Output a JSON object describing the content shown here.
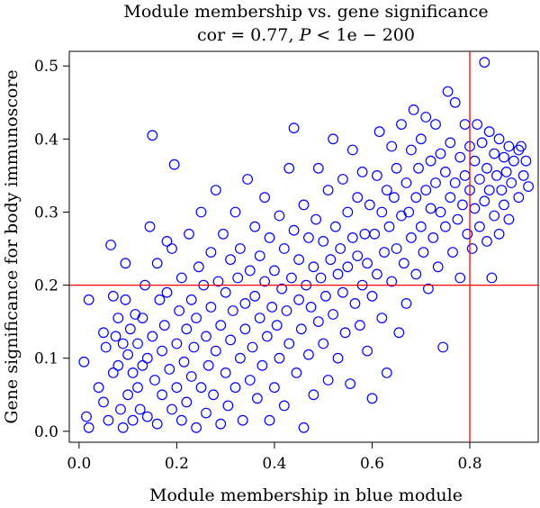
{
  "chart_data": {
    "type": "scatter",
    "title": "Module membership vs. gene significance",
    "subtitle_prefix": "cor = 0.77, ",
    "subtitle_p": "P",
    "subtitle_suffix": " < 1e − 200",
    "xlabel": "Module membership in blue module",
    "ylabel": "Gene significance for body immunoscore",
    "xlim": [
      -0.02,
      0.94
    ],
    "ylim": [
      -0.015,
      0.52
    ],
    "xticks": [
      0.0,
      0.2,
      0.4,
      0.6,
      0.8
    ],
    "yticks": [
      0.0,
      0.1,
      0.2,
      0.3,
      0.4,
      0.5
    ],
    "xtick_labels": [
      "0.0",
      "0.2",
      "0.4",
      "0.6",
      "0.8"
    ],
    "ytick_labels": [
      "0.0",
      "0.1",
      "0.2",
      "0.3",
      "0.4",
      "0.5"
    ],
    "reference_lines": {
      "x": 0.8,
      "y": 0.2,
      "color": "#ff0000"
    },
    "marker": "open-circle",
    "point_color": "#0000ff",
    "grid": false,
    "points": [
      [
        0.02,
        0.18
      ],
      [
        0.01,
        0.095
      ],
      [
        0.015,
        0.02
      ],
      [
        0.02,
        0.005
      ],
      [
        0.04,
        0.06
      ],
      [
        0.05,
        0.04
      ],
      [
        0.05,
        0.135
      ],
      [
        0.055,
        0.115
      ],
      [
        0.06,
        0.015
      ],
      [
        0.065,
        0.255
      ],
      [
        0.07,
        0.185
      ],
      [
        0.07,
        0.08
      ],
      [
        0.075,
        0.13
      ],
      [
        0.08,
        0.155
      ],
      [
        0.08,
        0.09
      ],
      [
        0.085,
        0.03
      ],
      [
        0.09,
        0.12
      ],
      [
        0.09,
        0.005
      ],
      [
        0.095,
        0.23
      ],
      [
        0.095,
        0.18
      ],
      [
        0.1,
        0.05
      ],
      [
        0.1,
        0.105
      ],
      [
        0.105,
        0.14
      ],
      [
        0.11,
        0.015
      ],
      [
        0.11,
        0.08
      ],
      [
        0.115,
        0.16
      ],
      [
        0.12,
        0.12
      ],
      [
        0.12,
        0.06
      ],
      [
        0.125,
        0.03
      ],
      [
        0.13,
        0.09
      ],
      [
        0.13,
        0.155
      ],
      [
        0.135,
        0.2
      ],
      [
        0.14,
        0.1
      ],
      [
        0.14,
        0.02
      ],
      [
        0.145,
        0.28
      ],
      [
        0.15,
        0.405
      ],
      [
        0.15,
        0.13
      ],
      [
        0.155,
        0.07
      ],
      [
        0.16,
        0.23
      ],
      [
        0.16,
        0.01
      ],
      [
        0.165,
        0.18
      ],
      [
        0.17,
        0.11
      ],
      [
        0.17,
        0.05
      ],
      [
        0.175,
        0.145
      ],
      [
        0.18,
        0.19
      ],
      [
        0.18,
        0.26
      ],
      [
        0.185,
        0.085
      ],
      [
        0.19,
        0.03
      ],
      [
        0.19,
        0.25
      ],
      [
        0.195,
        0.365
      ],
      [
        0.2,
        0.12
      ],
      [
        0.2,
        0.06
      ],
      [
        0.205,
        0.165
      ],
      [
        0.21,
        0.015
      ],
      [
        0.21,
        0.21
      ],
      [
        0.215,
        0.095
      ],
      [
        0.22,
        0.14
      ],
      [
        0.22,
        0.04
      ],
      [
        0.225,
        0.27
      ],
      [
        0.23,
        0.18
      ],
      [
        0.23,
        0.075
      ],
      [
        0.235,
        0.115
      ],
      [
        0.24,
        0.005
      ],
      [
        0.24,
        0.155
      ],
      [
        0.245,
        0.225
      ],
      [
        0.25,
        0.06
      ],
      [
        0.25,
        0.3
      ],
      [
        0.255,
        0.2
      ],
      [
        0.26,
        0.13
      ],
      [
        0.26,
        0.025
      ],
      [
        0.265,
        0.09
      ],
      [
        0.27,
        0.245
      ],
      [
        0.27,
        0.17
      ],
      [
        0.275,
        0.05
      ],
      [
        0.28,
        0.33
      ],
      [
        0.28,
        0.11
      ],
      [
        0.285,
        0.205
      ],
      [
        0.29,
        0.145
      ],
      [
        0.29,
        0.01
      ],
      [
        0.295,
        0.27
      ],
      [
        0.3,
        0.08
      ],
      [
        0.3,
        0.19
      ],
      [
        0.305,
        0.035
      ],
      [
        0.31,
        0.235
      ],
      [
        0.31,
        0.125
      ],
      [
        0.315,
        0.165
      ],
      [
        0.32,
        0.06
      ],
      [
        0.32,
        0.3
      ],
      [
        0.325,
        0.21
      ],
      [
        0.33,
        0.1
      ],
      [
        0.33,
        0.25
      ],
      [
        0.335,
        0.015
      ],
      [
        0.34,
        0.175
      ],
      [
        0.34,
        0.14
      ],
      [
        0.345,
        0.345
      ],
      [
        0.35,
        0.07
      ],
      [
        0.35,
        0.22
      ],
      [
        0.355,
        0.115
      ],
      [
        0.36,
        0.28
      ],
      [
        0.36,
        0.185
      ],
      [
        0.365,
        0.045
      ],
      [
        0.37,
        0.155
      ],
      [
        0.37,
        0.24
      ],
      [
        0.375,
        0.09
      ],
      [
        0.38,
        0.205
      ],
      [
        0.38,
        0.32
      ],
      [
        0.385,
        0.13
      ],
      [
        0.39,
        0.015
      ],
      [
        0.39,
        0.265
      ],
      [
        0.395,
        0.17
      ],
      [
        0.4,
        0.22
      ],
      [
        0.4,
        0.06
      ],
      [
        0.405,
        0.145
      ],
      [
        0.41,
        0.295
      ],
      [
        0.41,
        0.1
      ],
      [
        0.415,
        0.195
      ],
      [
        0.42,
        0.25
      ],
      [
        0.42,
        0.035
      ],
      [
        0.425,
        0.165
      ],
      [
        0.43,
        0.36
      ],
      [
        0.43,
        0.12
      ],
      [
        0.435,
        0.21
      ],
      [
        0.44,
        0.415
      ],
      [
        0.44,
        0.275
      ],
      [
        0.445,
        0.08
      ],
      [
        0.45,
        0.18
      ],
      [
        0.45,
        0.235
      ],
      [
        0.455,
        0.14
      ],
      [
        0.46,
        0.31
      ],
      [
        0.46,
        0.005
      ],
      [
        0.465,
        0.2
      ],
      [
        0.47,
        0.265
      ],
      [
        0.47,
        0.105
      ],
      [
        0.475,
        0.17
      ],
      [
        0.48,
        0.225
      ],
      [
        0.48,
        0.05
      ],
      [
        0.485,
        0.29
      ],
      [
        0.49,
        0.15
      ],
      [
        0.49,
        0.36
      ],
      [
        0.495,
        0.21
      ],
      [
        0.5,
        0.12
      ],
      [
        0.5,
        0.26
      ],
      [
        0.505,
        0.185
      ],
      [
        0.51,
        0.33
      ],
      [
        0.51,
        0.07
      ],
      [
        0.515,
        0.235
      ],
      [
        0.52,
        0.4
      ],
      [
        0.52,
        0.16
      ],
      [
        0.525,
        0.28
      ],
      [
        0.53,
        0.215
      ],
      [
        0.53,
        0.1
      ],
      [
        0.535,
        0.25
      ],
      [
        0.54,
        0.345
      ],
      [
        0.54,
        0.19
      ],
      [
        0.545,
        0.135
      ],
      [
        0.55,
        0.3
      ],
      [
        0.55,
        0.225
      ],
      [
        0.555,
        0.065
      ],
      [
        0.56,
        0.385
      ],
      [
        0.56,
        0.265
      ],
      [
        0.565,
        0.175
      ],
      [
        0.57,
        0.24
      ],
      [
        0.57,
        0.32
      ],
      [
        0.575,
        0.145
      ],
      [
        0.58,
        0.2
      ],
      [
        0.58,
        0.355
      ],
      [
        0.585,
        0.27
      ],
      [
        0.59,
        0.11
      ],
      [
        0.59,
        0.23
      ],
      [
        0.595,
        0.31
      ],
      [
        0.6,
        0.045
      ],
      [
        0.6,
        0.185
      ],
      [
        0.605,
        0.27
      ],
      [
        0.61,
        0.35
      ],
      [
        0.61,
        0.215
      ],
      [
        0.615,
        0.41
      ],
      [
        0.62,
        0.3
      ],
      [
        0.62,
        0.155
      ],
      [
        0.625,
        0.245
      ],
      [
        0.63,
        0.33
      ],
      [
        0.63,
        0.08
      ],
      [
        0.635,
        0.28
      ],
      [
        0.64,
        0.39
      ],
      [
        0.64,
        0.205
      ],
      [
        0.645,
        0.32
      ],
      [
        0.65,
        0.25
      ],
      [
        0.65,
        0.36
      ],
      [
        0.655,
        0.135
      ],
      [
        0.66,
        0.295
      ],
      [
        0.66,
        0.42
      ],
      [
        0.665,
        0.23
      ],
      [
        0.67,
        0.34
      ],
      [
        0.67,
        0.175
      ],
      [
        0.675,
        0.3
      ],
      [
        0.68,
        0.385
      ],
      [
        0.68,
        0.265
      ],
      [
        0.685,
        0.44
      ],
      [
        0.69,
        0.32
      ],
      [
        0.69,
        0.215
      ],
      [
        0.695,
        0.36
      ],
      [
        0.7,
        0.28
      ],
      [
        0.7,
        0.4
      ],
      [
        0.705,
        0.245
      ],
      [
        0.71,
        0.33
      ],
      [
        0.71,
        0.43
      ],
      [
        0.715,
        0.195
      ],
      [
        0.72,
        0.305
      ],
      [
        0.72,
        0.37
      ],
      [
        0.725,
        0.265
      ],
      [
        0.73,
        0.42
      ],
      [
        0.73,
        0.34
      ],
      [
        0.735,
        0.225
      ],
      [
        0.74,
        0.3
      ],
      [
        0.74,
        0.38
      ],
      [
        0.745,
        0.115
      ],
      [
        0.75,
        0.355
      ],
      [
        0.75,
        0.28
      ],
      [
        0.755,
        0.465
      ],
      [
        0.76,
        0.32
      ],
      [
        0.76,
        0.395
      ],
      [
        0.765,
        0.245
      ],
      [
        0.77,
        0.34
      ],
      [
        0.77,
        0.45
      ],
      [
        0.775,
        0.29
      ],
      [
        0.78,
        0.375
      ],
      [
        0.78,
        0.21
      ],
      [
        0.785,
        0.31
      ],
      [
        0.79,
        0.42
      ],
      [
        0.79,
        0.35
      ],
      [
        0.795,
        0.27
      ],
      [
        0.8,
        0.33
      ],
      [
        0.8,
        0.39
      ],
      [
        0.805,
        0.25
      ],
      [
        0.81,
        0.37
      ],
      [
        0.81,
        0.305
      ],
      [
        0.815,
        0.42
      ],
      [
        0.82,
        0.345
      ],
      [
        0.82,
        0.28
      ],
      [
        0.825,
        0.395
      ],
      [
        0.83,
        0.315
      ],
      [
        0.83,
        0.505
      ],
      [
        0.835,
        0.36
      ],
      [
        0.835,
        0.26
      ],
      [
        0.84,
        0.41
      ],
      [
        0.84,
        0.33
      ],
      [
        0.845,
        0.21
      ],
      [
        0.85,
        0.38
      ],
      [
        0.85,
        0.295
      ],
      [
        0.855,
        0.35
      ],
      [
        0.86,
        0.4
      ],
      [
        0.86,
        0.27
      ],
      [
        0.865,
        0.33
      ],
      [
        0.87,
        0.375
      ],
      [
        0.87,
        0.31
      ],
      [
        0.875,
        0.355
      ],
      [
        0.88,
        0.39
      ],
      [
        0.88,
        0.29
      ],
      [
        0.885,
        0.34
      ],
      [
        0.89,
        0.37
      ],
      [
        0.9,
        0.32
      ],
      [
        0.9,
        0.385
      ],
      [
        0.91,
        0.35
      ],
      [
        0.915,
        0.37
      ],
      [
        0.92,
        0.335
      ],
      [
        0.905,
        0.39
      ]
    ]
  }
}
